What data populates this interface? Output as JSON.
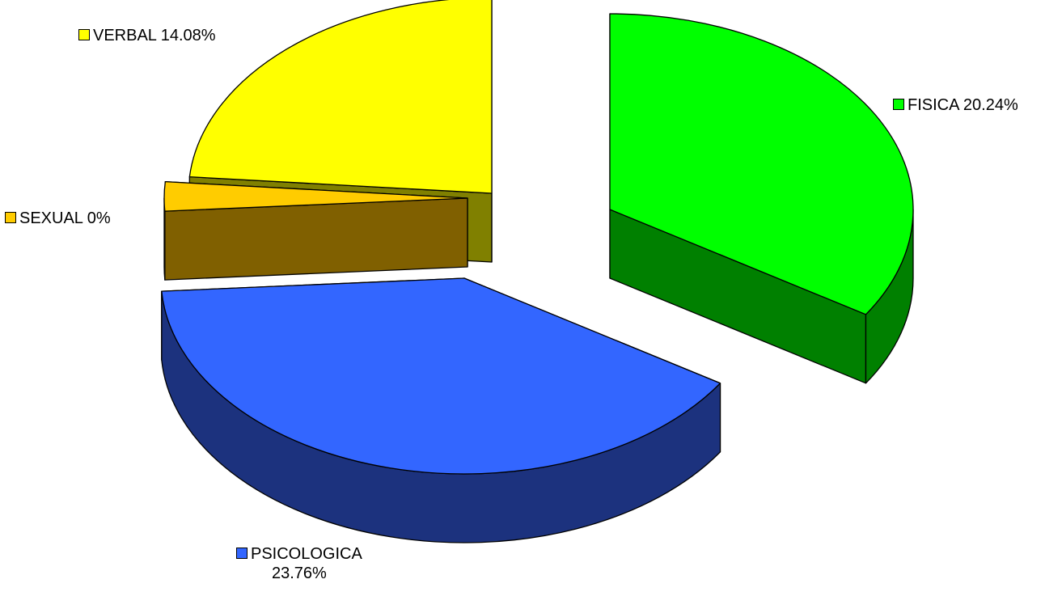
{
  "chart_data": {
    "type": "pie",
    "style": "3d-exploded",
    "slices": [
      {
        "label": "FISICA",
        "value": 20.24,
        "value_label": "20.24%",
        "color": "#00ff00",
        "side_color": "#008000"
      },
      {
        "label": "PSICOLOGICA",
        "value": 23.76,
        "value_label": "23.76%",
        "color": "#3366ff",
        "side_color": "#1c327e"
      },
      {
        "label": "SEXUAL",
        "value": 0,
        "value_label": "0%",
        "color": "#ffcc00",
        "side_color": "#806000"
      },
      {
        "label": "VERBAL",
        "value": 14.08,
        "value_label": "14.08%",
        "color": "#ffff00",
        "side_color": "#808000"
      }
    ],
    "data_labels": [
      {
        "text": "FISICA 20.24%",
        "key_color": "#00ff00"
      },
      {
        "text": "PSICOLOGICA",
        "text2": "23.76%",
        "key_color": "#3366ff"
      },
      {
        "text": "SEXUAL 0%",
        "key_color": "#ffcc00"
      },
      {
        "text": "VERBAL 14.08%",
        "key_color": "#ffff00"
      }
    ]
  }
}
